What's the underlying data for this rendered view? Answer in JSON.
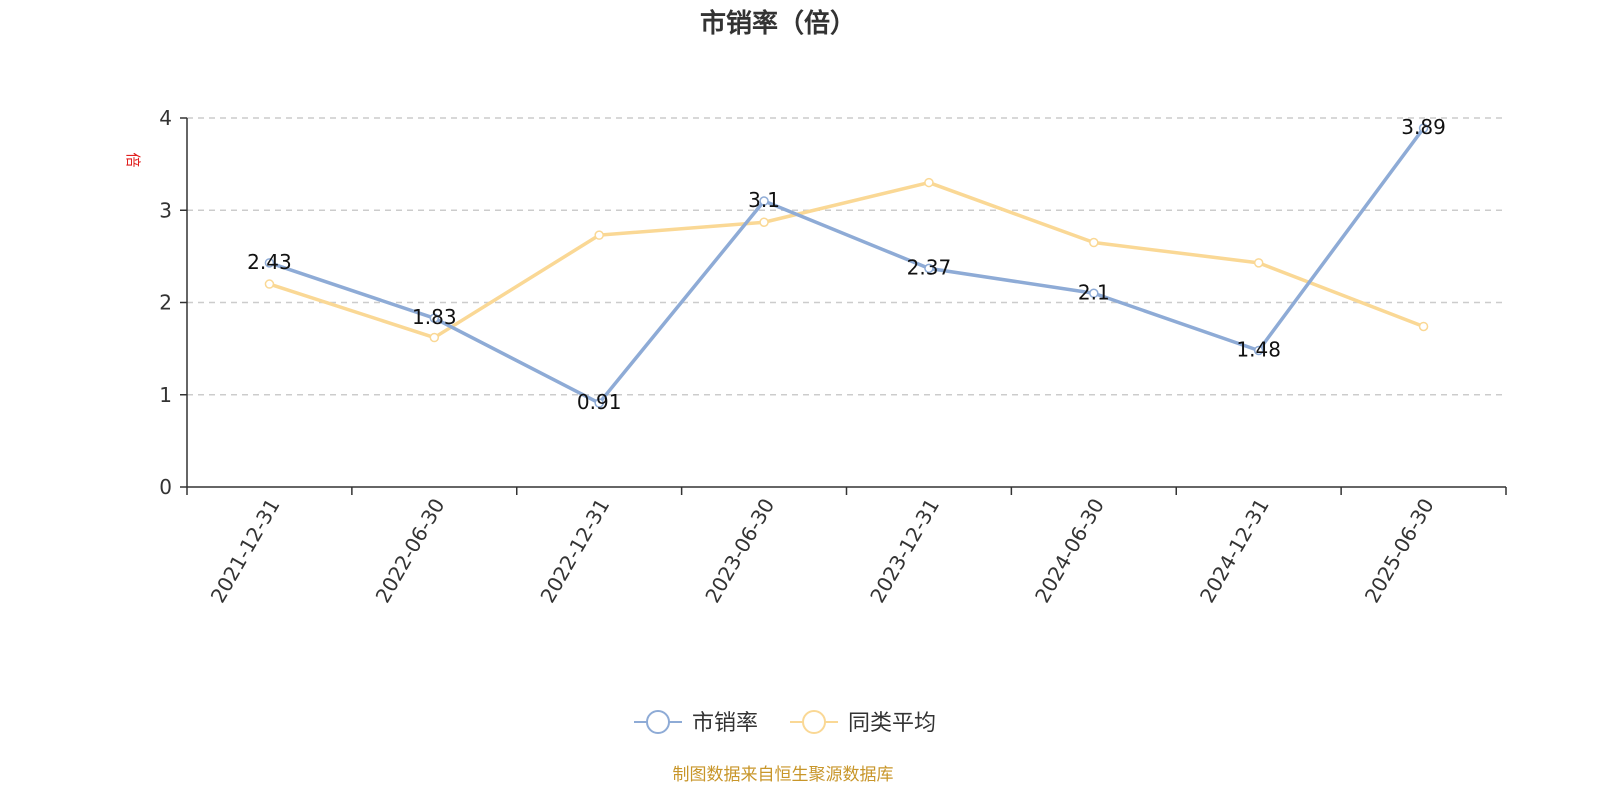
{
  "chart_data": {
    "type": "line",
    "title": "市销率（倍）",
    "ylabel": "倍",
    "xlabel": "",
    "categories": [
      "2021-12-31",
      "2022-06-30",
      "2022-12-31",
      "2023-06-30",
      "2023-12-31",
      "2024-06-30",
      "2024-12-31",
      "2025-06-30"
    ],
    "ylim": [
      0,
      4
    ],
    "yticks": [
      0,
      1,
      2,
      3,
      4
    ],
    "grid": true,
    "legend_position": "bottom",
    "series": [
      {
        "name": "市销率",
        "values": [
          2.43,
          1.83,
          0.91,
          3.1,
          2.37,
          2.1,
          1.48,
          3.89
        ],
        "labels": [
          "2.43",
          "1.83",
          "0.91",
          "3.1",
          "2.37",
          "2.1",
          "1.48",
          "3.89"
        ],
        "color": "#8eabd6"
      },
      {
        "name": "同类平均",
        "values": [
          2.2,
          1.62,
          2.73,
          2.87,
          3.3,
          2.65,
          2.43,
          1.74
        ],
        "color": "#fad895"
      }
    ],
    "source": "制图数据来自恒生聚源数据库"
  },
  "colors": {
    "axis": "#333333",
    "grid": "#cccccc",
    "unit": "#e0201f",
    "source": "#c8962a"
  }
}
